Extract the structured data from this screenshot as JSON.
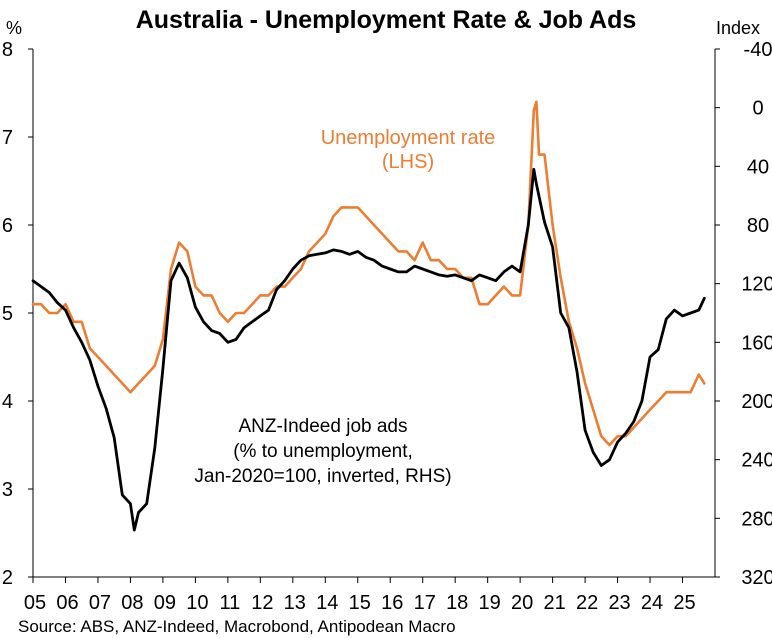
{
  "chart_data": {
    "type": "line",
    "title": "Australia - Unemployment Rate & Job Ads",
    "left_axis_unit": "%",
    "right_axis_unit": "Index",
    "xlim": [
      2005.0,
      2026.0
    ],
    "x_tick_labels": [
      "05",
      "06",
      "07",
      "08",
      "09",
      "10",
      "11",
      "12",
      "13",
      "14",
      "15",
      "16",
      "17",
      "18",
      "19",
      "20",
      "21",
      "22",
      "23",
      "24",
      "25"
    ],
    "left_ylim": [
      2,
      8
    ],
    "left_ticks": [
      2,
      3,
      4,
      5,
      6,
      7,
      8
    ],
    "right_ylim": [
      320,
      -40
    ],
    "right_inverted": true,
    "right_ticks": [
      -40,
      0,
      40,
      80,
      120,
      160,
      200,
      240,
      280,
      320
    ],
    "grid": false,
    "series": [
      {
        "name": "Unemployment rate (LHS)",
        "axis": "left",
        "color": "#ED7D31",
        "x": [
          2005.0,
          2005.25,
          2005.5,
          2005.75,
          2006.0,
          2006.25,
          2006.5,
          2006.75,
          2007.0,
          2007.25,
          2007.5,
          2007.75,
          2008.0,
          2008.25,
          2008.5,
          2008.75,
          2009.0,
          2009.25,
          2009.5,
          2009.75,
          2010.0,
          2010.25,
          2010.5,
          2010.75,
          2011.0,
          2011.25,
          2011.5,
          2011.75,
          2012.0,
          2012.25,
          2012.5,
          2012.75,
          2013.0,
          2013.25,
          2013.5,
          2013.75,
          2014.0,
          2014.25,
          2014.5,
          2014.75,
          2015.0,
          2015.25,
          2015.5,
          2015.75,
          2016.0,
          2016.25,
          2016.5,
          2016.75,
          2017.0,
          2017.25,
          2017.5,
          2017.75,
          2018.0,
          2018.25,
          2018.5,
          2018.75,
          2019.0,
          2019.25,
          2019.5,
          2019.75,
          2020.0,
          2020.25,
          2020.42,
          2020.5,
          2020.58,
          2020.75,
          2021.0,
          2021.25,
          2021.5,
          2021.75,
          2022.0,
          2022.25,
          2022.5,
          2022.75,
          2023.0,
          2023.25,
          2023.5,
          2023.75,
          2024.0,
          2024.25,
          2024.5,
          2024.75,
          2025.0,
          2025.25,
          2025.5,
          2025.67
        ],
        "values": [
          5.1,
          5.1,
          5.0,
          5.0,
          5.1,
          4.9,
          4.9,
          4.6,
          4.5,
          4.4,
          4.3,
          4.2,
          4.1,
          4.2,
          4.3,
          4.4,
          4.7,
          5.5,
          5.8,
          5.7,
          5.3,
          5.2,
          5.2,
          5.0,
          4.9,
          5.0,
          5.0,
          5.1,
          5.2,
          5.2,
          5.3,
          5.3,
          5.4,
          5.5,
          5.7,
          5.8,
          5.9,
          6.1,
          6.2,
          6.2,
          6.2,
          6.1,
          6.0,
          5.9,
          5.8,
          5.7,
          5.7,
          5.6,
          5.8,
          5.6,
          5.6,
          5.5,
          5.5,
          5.4,
          5.4,
          5.1,
          5.1,
          5.2,
          5.3,
          5.2,
          5.2,
          6.0,
          7.3,
          7.4,
          6.8,
          6.8,
          6.0,
          5.4,
          4.9,
          4.6,
          4.2,
          3.9,
          3.6,
          3.5,
          3.6,
          3.6,
          3.7,
          3.8,
          3.9,
          4.0,
          4.1,
          4.1,
          4.1,
          4.1,
          4.3,
          4.2
        ]
      },
      {
        "name": "ANZ-Indeed job ads (% to unemployment, Jan-2020=100, inverted, RHS)",
        "axis": "right",
        "color": "#000000",
        "x": [
          2005.0,
          2005.25,
          2005.5,
          2005.75,
          2006.0,
          2006.25,
          2006.5,
          2006.75,
          2007.0,
          2007.25,
          2007.5,
          2007.75,
          2008.0,
          2008.12,
          2008.25,
          2008.5,
          2008.75,
          2009.0,
          2009.25,
          2009.5,
          2009.75,
          2010.0,
          2010.25,
          2010.5,
          2010.75,
          2011.0,
          2011.25,
          2011.5,
          2011.75,
          2012.0,
          2012.25,
          2012.5,
          2012.75,
          2013.0,
          2013.25,
          2013.5,
          2013.75,
          2014.0,
          2014.25,
          2014.5,
          2014.75,
          2015.0,
          2015.25,
          2015.5,
          2015.75,
          2016.0,
          2016.25,
          2016.5,
          2016.75,
          2017.0,
          2017.25,
          2017.5,
          2017.75,
          2018.0,
          2018.25,
          2018.5,
          2018.75,
          2019.0,
          2019.25,
          2019.5,
          2019.75,
          2020.0,
          2020.25,
          2020.42,
          2020.5,
          2020.75,
          2021.0,
          2021.25,
          2021.5,
          2021.75,
          2022.0,
          2022.25,
          2022.5,
          2022.75,
          2023.0,
          2023.25,
          2023.5,
          2023.75,
          2024.0,
          2024.25,
          2024.5,
          2024.75,
          2025.0,
          2025.25,
          2025.5,
          2025.67
        ],
        "values": [
          118,
          122,
          126,
          133,
          138,
          150,
          160,
          172,
          190,
          205,
          225,
          264,
          270,
          288,
          276,
          270,
          232,
          178,
          118,
          106,
          116,
          136,
          146,
          152,
          154,
          160,
          158,
          150,
          146,
          142,
          138,
          124,
          118,
          110,
          104,
          101,
          100,
          99,
          97,
          98,
          100,
          98,
          102,
          104,
          108,
          110,
          112,
          112,
          108,
          110,
          112,
          114,
          115,
          114,
          116,
          118,
          114,
          116,
          118,
          112,
          108,
          112,
          80,
          42,
          52,
          78,
          95,
          140,
          150,
          180,
          220,
          235,
          244,
          240,
          228,
          222,
          214,
          200,
          170,
          165,
          144,
          138,
          142,
          140,
          138,
          130
        ]
      }
    ],
    "annotations": {
      "unemployment_label": [
        "Unemployment rate",
        "(LHS)"
      ],
      "job_ads_label": [
        "ANZ-Indeed job ads",
        "(% to unemployment,",
        "Jan-2020=100, inverted, RHS)"
      ]
    },
    "source": "Source: ABS, ANZ-Indeed, Macrobond, Antipodean Macro"
  }
}
